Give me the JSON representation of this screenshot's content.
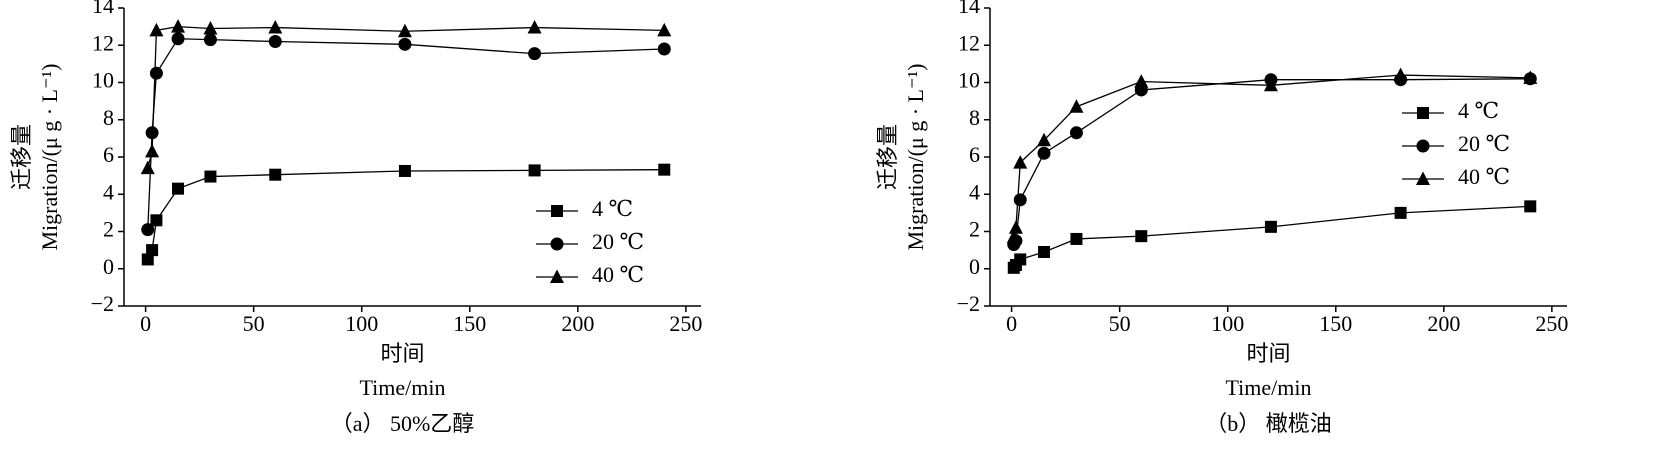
{
  "chart_data": [
    {
      "type": "line",
      "ylabel_cn": "迁移量",
      "ylabel": "Migration/(μ g · L⁻¹)",
      "xlabel_cn": "时间",
      "xlabel": "Time/min",
      "caption": "（a） 50%乙醇",
      "x": [
        1,
        3,
        5,
        15,
        30,
        60,
        120,
        180,
        240
      ],
      "series": [
        {
          "name": "4 ℃",
          "color": "#000000",
          "marker": "square",
          "values": [
            0.5,
            1.0,
            2.6,
            4.3,
            4.95,
            5.05,
            5.25,
            5.28,
            5.32
          ]
        },
        {
          "name": "20 ℃",
          "color": "#000000",
          "marker": "circle",
          "values": [
            2.1,
            7.3,
            10.5,
            12.35,
            12.3,
            12.2,
            12.05,
            11.55,
            11.8
          ]
        },
        {
          "name": "40 ℃",
          "color": "#000000",
          "marker": "triangle",
          "values": [
            5.4,
            6.3,
            12.8,
            13.0,
            12.9,
            12.95,
            12.75,
            12.95,
            12.8
          ]
        }
      ],
      "xlim": [
        -10,
        257
      ],
      "xticks": [
        0,
        50,
        100,
        150,
        200,
        250
      ],
      "ylim": [
        -2,
        14
      ],
      "yticks": [
        {
          "value": -2,
          "label": "−2"
        },
        0,
        2,
        4,
        6,
        8,
        10,
        12,
        14
      ],
      "legend": "lower right"
    },
    {
      "type": "line",
      "ylabel_cn": "迁移量",
      "ylabel": "Migration/(μ g · L⁻¹)",
      "xlabel_cn": "时间",
      "xlabel": "Time/min",
      "caption": "（b） 橄榄油",
      "x": [
        1,
        2,
        4,
        15,
        30,
        60,
        120,
        180,
        240
      ],
      "series": [
        {
          "name": "4 ℃",
          "color": "#000000",
          "marker": "square",
          "values": [
            0.05,
            0.2,
            0.5,
            0.9,
            1.6,
            1.75,
            2.25,
            3.0,
            3.35
          ]
        },
        {
          "name": "20 ℃",
          "color": "#000000",
          "marker": "circle",
          "values": [
            1.3,
            1.5,
            3.7,
            6.2,
            7.3,
            9.6,
            10.15,
            10.15,
            10.2
          ]
        },
        {
          "name": "40 ℃",
          "color": "#000000",
          "marker": "triangle",
          "values": [
            1.7,
            2.2,
            5.7,
            6.9,
            8.7,
            10.05,
            9.85,
            10.4,
            10.25
          ]
        }
      ],
      "xlim": [
        -10,
        257
      ],
      "xticks": [
        0,
        50,
        100,
        150,
        200,
        250
      ],
      "ylim": [
        -2,
        14
      ],
      "yticks": [
        {
          "value": -2,
          "label": "−2"
        },
        0,
        2,
        4,
        6,
        8,
        10,
        12,
        14
      ],
      "legend": "center right"
    }
  ]
}
